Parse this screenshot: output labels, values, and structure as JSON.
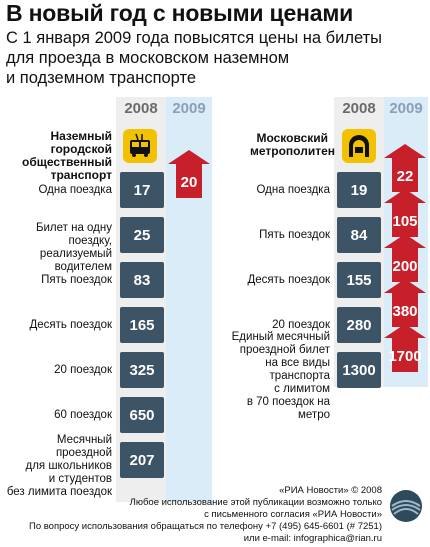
{
  "title": "В новый год с новыми ценами",
  "subtitle": [
    "С 1 января 2009 года повысятся цены на билеты",
    "для проезда в московском наземном",
    "и подземном транспорте"
  ],
  "years": {
    "y2008": "2008",
    "y2009": "2009"
  },
  "surface": {
    "category": [
      "Наземный городской",
      "общественный",
      "транспорт"
    ],
    "icon": "trolleybus-icon",
    "rows": [
      {
        "label": [
          "Одна поездка"
        ],
        "p2008": "17",
        "p2009": "20"
      },
      {
        "label": [
          "Билет на одну поездку,",
          "реализуемый водителем"
        ],
        "p2008": "25"
      },
      {
        "label": [
          "Пять поездок"
        ],
        "p2008": "83"
      },
      {
        "label": [
          "Десять поездок"
        ],
        "p2008": "165"
      },
      {
        "label": [
          "20 поездок"
        ],
        "p2008": "325"
      },
      {
        "label": [
          "60 поездок"
        ],
        "p2008": "650"
      },
      {
        "label": [
          "Месячный проездной",
          "для школьников",
          "и студентов",
          "без лимита поездок"
        ],
        "p2008": "207"
      }
    ]
  },
  "metro": {
    "category": [
      "Московский",
      "метрополитен"
    ],
    "icon": "metro-tunnel-icon",
    "rows": [
      {
        "label": [
          "Одна поездка"
        ],
        "p2008": "19",
        "p2009": "22"
      },
      {
        "label": [
          "Пять поездок"
        ],
        "p2008": "84",
        "p2009": "105"
      },
      {
        "label": [
          "Десять поездок"
        ],
        "p2008": "155",
        "p2009": "200"
      },
      {
        "label": [
          "20 поездок"
        ],
        "p2008": "280",
        "p2009": "380"
      },
      {
        "label": [
          "Единый месячный",
          "проездной билет",
          "на все виды",
          "транспорта",
          "с лимитом",
          "в 70 поездок на метро"
        ],
        "p2008": "1300",
        "p2009": "1700"
      }
    ]
  },
  "footer": [
    "«РИА Новости» © 2008",
    "Любое использование этой публикации возможно только",
    "с письменного согласия «РИА Новости»",
    "По вопросу использования обращаться по телефону +7 (495) 645-6601 (# 7251)",
    "или e-mail: infographica@rian.ru"
  ],
  "colors": {
    "box": "#3d5466",
    "arrow": "#c8202a",
    "icon": "#f2c200",
    "col2009": "#d9ecf8"
  }
}
